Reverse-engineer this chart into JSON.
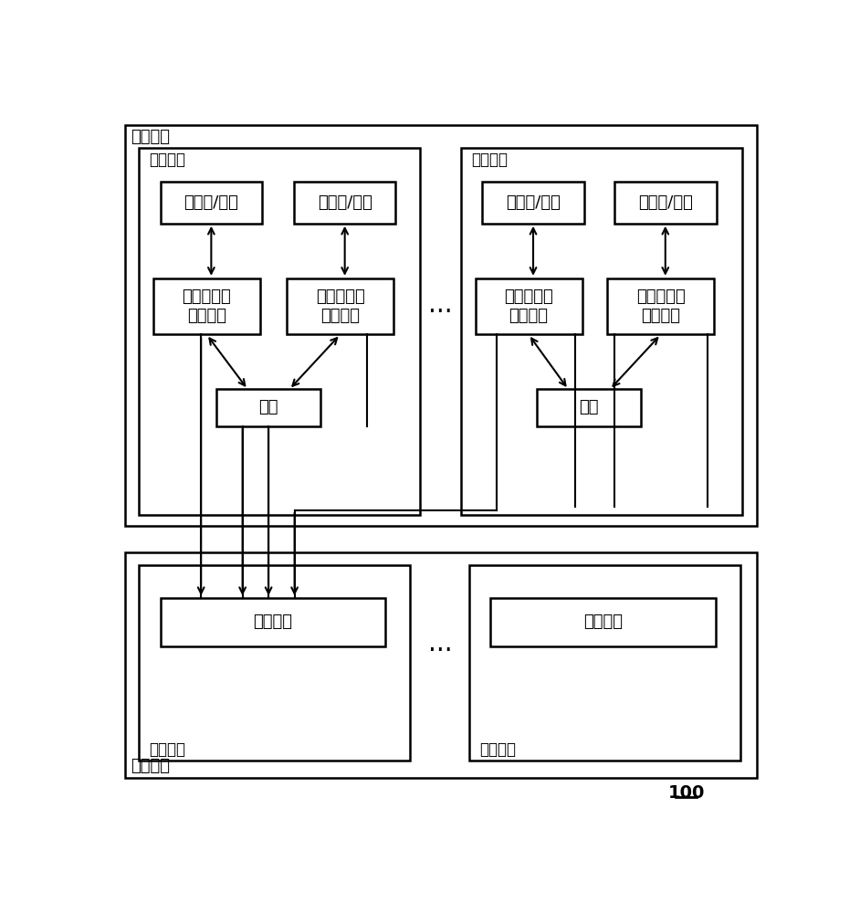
{
  "bg_color": "#ffffff",
  "line_color": "#000000",
  "text_color": "#000000",
  "font_size_label": 13,
  "font_size_node": 12,
  "font_size_cluster": 13,
  "font_size_ref": 14,
  "compute_cluster_label": "计算集群",
  "storage_cluster_label": "存储集群",
  "compute_node_label": "计算节点",
  "data_node_label": "数据节点",
  "vm_label": "虚拟机/容器",
  "read_label": "读取镜像数\n据的装置",
  "cache_label": "缓存",
  "mirror_label": "镜像文件",
  "dots": "...",
  "ref_label": "100"
}
